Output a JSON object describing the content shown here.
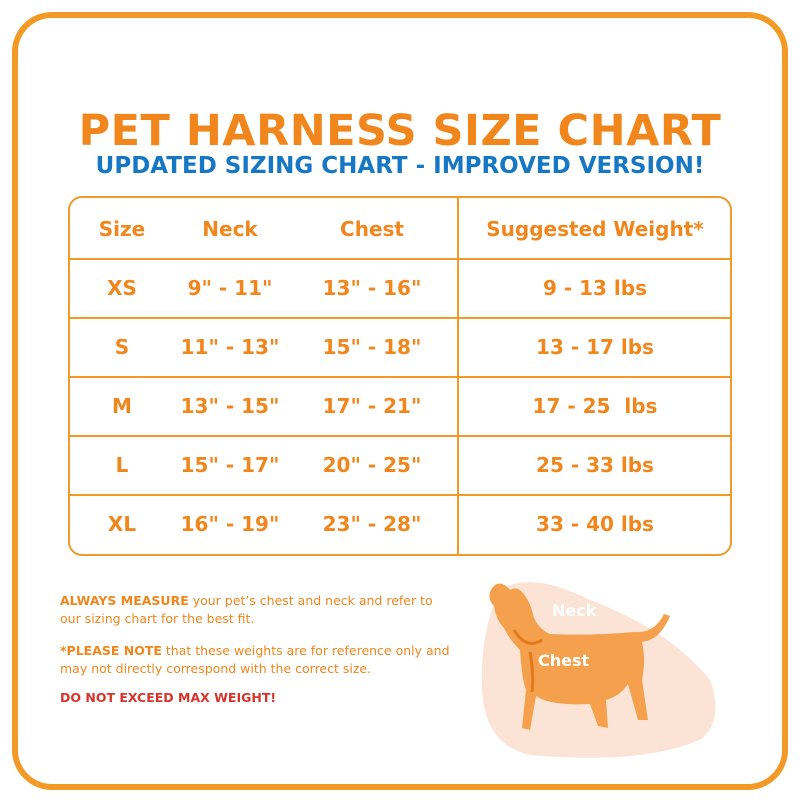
{
  "header": {
    "title": "PET HARNESS SIZE CHART",
    "subtitle": "UPDATED SIZING CHART - IMPROVED VERSION!"
  },
  "table": {
    "columns": [
      "Size",
      "Neck",
      "Chest",
      "Suggested Weight*"
    ],
    "rows": [
      [
        "XS",
        "9\" - 11\"",
        "13\" - 16\"",
        "9 - 13 lbs"
      ],
      [
        "S",
        "11\" - 13\"",
        "15\" - 18\"",
        "13 - 17 lbs"
      ],
      [
        "M",
        "13\" - 15\"",
        "17\" - 21\"",
        "17 - 25  lbs"
      ],
      [
        "L",
        "15\" - 17\"",
        "20\" - 25\"",
        "25 - 33 lbs"
      ],
      [
        "XL",
        "16\" - 19\"",
        "23\" - 28\"",
        "33 - 40 lbs"
      ]
    ]
  },
  "notes": [
    {
      "lead": "ALWAYS MEASURE",
      "text": " your pet’s chest and neck and refer to our sizing chart for the best fit."
    },
    {
      "lead": "*PLEASE NOTE",
      "text": " that these weights are for reference only and may not directly correspond with the correct size."
    }
  ],
  "warning": "DO NOT EXCEED MAX WEIGHT!",
  "diagram": {
    "neck_label": "Neck",
    "chest_label": "Chest"
  }
}
